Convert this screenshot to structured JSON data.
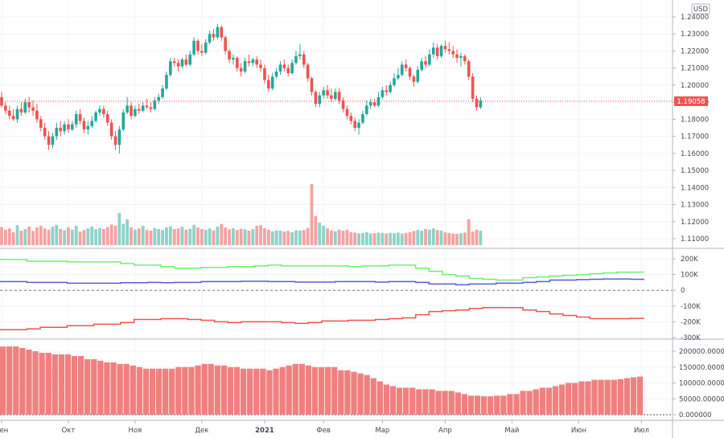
{
  "chart_data": [
    {
      "type": "candlestick",
      "currency_label": "USD",
      "last_price_label": "1.19058",
      "last_price": 1.19058,
      "ylim": [
        1.103,
        1.245
      ],
      "y_ticks": [
        "1.24000",
        "1.23000",
        "1.22000",
        "1.21000",
        "1.20000",
        "1.19000",
        "1.18000",
        "1.17000",
        "1.16000",
        "1.15000",
        "1.14000",
        "1.13000",
        "1.12000",
        "1.11000"
      ],
      "y_tick_values": [
        1.24,
        1.23,
        1.22,
        1.21,
        1.2,
        1.19,
        1.18,
        1.17,
        1.16,
        1.15,
        1.14,
        1.13,
        1.12,
        1.11
      ],
      "x_ticks": [
        "Сен",
        "Окт",
        "Ноя",
        "Дек",
        "2021",
        "Фев",
        "Мар",
        "Апр",
        "Май",
        "Июн",
        "Июл"
      ],
      "x_tick_positions": [
        0,
        17,
        34,
        51,
        67,
        82,
        97,
        113,
        130,
        147,
        163
      ],
      "colors": {
        "up": "#26a69a",
        "down": "#ef5350",
        "volume_up": "#8fd1c9",
        "volume_down": "#f4a3a1"
      },
      "candles": [
        [
          1.193,
          1.196,
          1.187,
          1.188
        ],
        [
          1.188,
          1.19,
          1.183,
          1.185
        ],
        [
          1.185,
          1.188,
          1.18,
          1.182
        ],
        [
          1.182,
          1.186,
          1.179,
          1.18
        ],
        [
          1.18,
          1.188,
          1.178,
          1.186
        ],
        [
          1.186,
          1.19,
          1.182,
          1.184
        ],
        [
          1.184,
          1.192,
          1.183,
          1.19
        ],
        [
          1.19,
          1.193,
          1.184,
          1.187
        ],
        [
          1.187,
          1.191,
          1.182,
          1.185
        ],
        [
          1.185,
          1.189,
          1.178,
          1.18
        ],
        [
          1.18,
          1.182,
          1.173,
          1.175
        ],
        [
          1.175,
          1.178,
          1.168,
          1.17
        ],
        [
          1.17,
          1.173,
          1.162,
          1.165
        ],
        [
          1.165,
          1.172,
          1.163,
          1.17
        ],
        [
          1.17,
          1.178,
          1.168,
          1.175
        ],
        [
          1.175,
          1.179,
          1.17,
          1.173
        ],
        [
          1.173,
          1.179,
          1.171,
          1.177
        ],
        [
          1.177,
          1.18,
          1.172,
          1.174
        ],
        [
          1.174,
          1.179,
          1.173,
          1.177
        ],
        [
          1.177,
          1.185,
          1.175,
          1.183
        ],
        [
          1.183,
          1.186,
          1.177,
          1.179
        ],
        [
          1.179,
          1.181,
          1.172,
          1.174
        ],
        [
          1.174,
          1.179,
          1.171,
          1.176
        ],
        [
          1.176,
          1.182,
          1.175,
          1.179
        ],
        [
          1.179,
          1.185,
          1.178,
          1.184
        ],
        [
          1.184,
          1.188,
          1.182,
          1.186
        ],
        [
          1.186,
          1.188,
          1.181,
          1.183
        ],
        [
          1.183,
          1.185,
          1.176,
          1.178
        ],
        [
          1.178,
          1.18,
          1.168,
          1.17
        ],
        [
          1.17,
          1.173,
          1.162,
          1.165
        ],
        [
          1.165,
          1.176,
          1.16,
          1.174
        ],
        [
          1.174,
          1.186,
          1.173,
          1.184
        ],
        [
          1.184,
          1.193,
          1.183,
          1.188
        ],
        [
          1.188,
          1.19,
          1.18,
          1.182
        ],
        [
          1.182,
          1.188,
          1.181,
          1.186
        ],
        [
          1.186,
          1.189,
          1.183,
          1.185
        ],
        [
          1.185,
          1.19,
          1.184,
          1.188
        ],
        [
          1.188,
          1.192,
          1.186,
          1.187
        ],
        [
          1.187,
          1.19,
          1.184,
          1.186
        ],
        [
          1.186,
          1.193,
          1.185,
          1.191
        ],
        [
          1.191,
          1.195,
          1.189,
          1.193
        ],
        [
          1.193,
          1.2,
          1.192,
          1.198
        ],
        [
          1.198,
          1.208,
          1.197,
          1.206
        ],
        [
          1.206,
          1.216,
          1.205,
          1.214
        ],
        [
          1.214,
          1.216,
          1.211,
          1.213
        ],
        [
          1.213,
          1.215,
          1.208,
          1.211
        ],
        [
          1.211,
          1.216,
          1.21,
          1.215
        ],
        [
          1.215,
          1.218,
          1.211,
          1.212
        ],
        [
          1.212,
          1.22,
          1.211,
          1.218
        ],
        [
          1.218,
          1.228,
          1.217,
          1.226
        ],
        [
          1.226,
          1.227,
          1.218,
          1.22
        ],
        [
          1.22,
          1.224,
          1.217,
          1.219
        ],
        [
          1.219,
          1.227,
          1.218,
          1.225
        ],
        [
          1.225,
          1.232,
          1.224,
          1.23
        ],
        [
          1.23,
          1.233,
          1.226,
          1.228
        ],
        [
          1.228,
          1.236,
          1.227,
          1.234
        ],
        [
          1.234,
          1.235,
          1.226,
          1.228
        ],
        [
          1.228,
          1.229,
          1.218,
          1.22
        ],
        [
          1.22,
          1.221,
          1.213,
          1.215
        ],
        [
          1.215,
          1.218,
          1.212,
          1.216
        ],
        [
          1.216,
          1.217,
          1.208,
          1.21
        ],
        [
          1.21,
          1.213,
          1.205,
          1.208
        ],
        [
          1.208,
          1.216,
          1.207,
          1.214
        ],
        [
          1.214,
          1.218,
          1.211,
          1.213
        ],
        [
          1.213,
          1.216,
          1.211,
          1.215
        ],
        [
          1.215,
          1.217,
          1.21,
          1.212
        ],
        [
          1.212,
          1.215,
          1.208,
          1.21
        ],
        [
          1.21,
          1.212,
          1.201,
          1.203
        ],
        [
          1.203,
          1.206,
          1.196,
          1.198
        ],
        [
          1.198,
          1.207,
          1.197,
          1.205
        ],
        [
          1.205,
          1.21,
          1.204,
          1.208
        ],
        [
          1.208,
          1.214,
          1.206,
          1.212
        ],
        [
          1.212,
          1.215,
          1.208,
          1.21
        ],
        [
          1.21,
          1.212,
          1.205,
          1.207
        ],
        [
          1.207,
          1.215,
          1.206,
          1.213
        ],
        [
          1.213,
          1.22,
          1.212,
          1.217
        ],
        [
          1.217,
          1.224,
          1.215,
          1.218
        ],
        [
          1.218,
          1.22,
          1.21,
          1.212
        ],
        [
          1.212,
          1.213,
          1.202,
          1.204
        ],
        [
          1.204,
          1.205,
          1.194,
          1.196
        ],
        [
          1.196,
          1.197,
          1.187,
          1.189
        ],
        [
          1.189,
          1.196,
          1.187,
          1.194
        ],
        [
          1.194,
          1.199,
          1.192,
          1.197
        ],
        [
          1.197,
          1.2,
          1.192,
          1.194
        ],
        [
          1.194,
          1.198,
          1.19,
          1.192
        ],
        [
          1.192,
          1.198,
          1.191,
          1.196
        ],
        [
          1.196,
          1.198,
          1.189,
          1.191
        ],
        [
          1.191,
          1.193,
          1.184,
          1.186
        ],
        [
          1.186,
          1.188,
          1.18,
          1.182
        ],
        [
          1.182,
          1.184,
          1.177,
          1.179
        ],
        [
          1.179,
          1.181,
          1.173,
          1.175
        ],
        [
          1.175,
          1.18,
          1.171,
          1.178
        ],
        [
          1.178,
          1.185,
          1.177,
          1.183
        ],
        [
          1.183,
          1.191,
          1.182,
          1.188
        ],
        [
          1.188,
          1.192,
          1.186,
          1.19
        ],
        [
          1.19,
          1.192,
          1.187,
          1.188
        ],
        [
          1.188,
          1.196,
          1.187,
          1.193
        ],
        [
          1.193,
          1.199,
          1.192,
          1.197
        ],
        [
          1.197,
          1.2,
          1.194,
          1.196
        ],
        [
          1.196,
          1.202,
          1.195,
          1.2
        ],
        [
          1.2,
          1.207,
          1.199,
          1.204
        ],
        [
          1.204,
          1.21,
          1.203,
          1.206
        ],
        [
          1.206,
          1.214,
          1.205,
          1.212
        ],
        [
          1.212,
          1.215,
          1.208,
          1.21
        ],
        [
          1.21,
          1.211,
          1.203,
          1.205
        ],
        [
          1.205,
          1.206,
          1.199,
          1.202
        ],
        [
          1.202,
          1.211,
          1.201,
          1.209
        ],
        [
          1.209,
          1.216,
          1.208,
          1.214
        ],
        [
          1.214,
          1.217,
          1.21,
          1.212
        ],
        [
          1.212,
          1.221,
          1.211,
          1.218
        ],
        [
          1.218,
          1.225,
          1.216,
          1.222
        ],
        [
          1.222,
          1.224,
          1.215,
          1.217
        ],
        [
          1.217,
          1.224,
          1.216,
          1.223
        ],
        [
          1.223,
          1.226,
          1.219,
          1.221
        ],
        [
          1.221,
          1.225,
          1.218,
          1.22
        ],
        [
          1.22,
          1.223,
          1.216,
          1.218
        ],
        [
          1.218,
          1.221,
          1.213,
          1.216
        ],
        [
          1.216,
          1.219,
          1.211,
          1.217
        ],
        [
          1.217,
          1.218,
          1.212,
          1.214
        ],
        [
          1.214,
          1.215,
          1.203,
          1.205
        ],
        [
          1.205,
          1.207,
          1.19,
          1.192
        ],
        [
          1.192,
          1.194,
          1.185,
          1.187
        ],
        [
          1.187,
          1.193,
          1.186,
          1.191
        ]
      ],
      "volume": [
        0.56,
        0.48,
        0.52,
        0.4,
        0.62,
        0.45,
        0.5,
        0.58,
        0.44,
        0.55,
        0.6,
        0.52,
        0.48,
        0.57,
        0.63,
        0.5,
        0.46,
        0.55,
        0.48,
        0.6,
        0.42,
        0.47,
        0.52,
        0.58,
        0.49,
        0.53,
        0.5,
        0.56,
        0.64,
        0.6,
        1.0,
        0.66,
        0.8,
        0.55,
        0.48,
        0.52,
        0.6,
        0.47,
        0.45,
        0.53,
        0.5,
        0.47,
        0.55,
        0.58,
        0.5,
        0.52,
        0.57,
        0.48,
        0.51,
        0.63,
        0.55,
        0.5,
        0.47,
        0.52,
        0.46,
        0.58,
        0.66,
        0.55,
        0.49,
        0.52,
        0.47,
        0.51,
        0.49,
        0.45,
        0.5,
        0.6,
        0.62,
        0.53,
        0.48,
        0.43,
        0.46,
        0.45,
        0.42,
        0.44,
        0.4,
        0.46,
        0.45,
        0.47,
        0.53,
        1.9,
        0.9,
        0.7,
        0.6,
        0.52,
        0.46,
        0.43,
        0.48,
        0.45,
        0.47,
        0.4,
        0.39,
        0.36,
        0.38,
        0.4,
        0.36,
        0.37,
        0.39,
        0.38,
        0.36,
        0.38,
        0.37,
        0.39,
        0.36,
        0.38,
        0.4,
        0.44,
        0.47,
        0.45,
        0.5,
        0.48,
        0.52,
        0.47,
        0.45,
        0.4,
        0.38,
        0.36,
        0.35,
        0.37,
        0.39,
        0.8,
        0.42,
        0.48,
        0.45
      ]
    },
    {
      "type": "line",
      "y_ticks": [
        "200K",
        "100K",
        "0",
        "-100K",
        "-200K",
        "-300K"
      ],
      "y_tick_values": [
        200000,
        100000,
        0,
        -100000,
        -200000,
        -300000
      ],
      "ylim": [
        -330000,
        250000
      ],
      "zero_line": true,
      "series": [
        {
          "color": "#6ef06e",
          "values": [
            195000,
            195000,
            185000,
            185000,
            185000,
            180000,
            180000,
            180000,
            180000,
            170000,
            160000,
            160000,
            150000,
            140000,
            140000,
            145000,
            145000,
            150000,
            150000,
            155000,
            160000,
            155000,
            155000,
            155000,
            155000,
            155000,
            150000,
            155000,
            155000,
            160000,
            160000,
            140000,
            120000,
            100000,
            90000,
            75000,
            70000,
            65000,
            65000,
            80000,
            85000,
            90000,
            95000,
            100000,
            105000,
            110000,
            115000,
            115000,
            120000
          ]
        },
        {
          "color": "#5b5bd6",
          "values": [
            55000,
            55000,
            50000,
            50000,
            50000,
            45000,
            45000,
            45000,
            45000,
            48000,
            48000,
            50000,
            48000,
            50000,
            50000,
            55000,
            55000,
            55000,
            57000,
            57000,
            55000,
            55000,
            52000,
            52000,
            52000,
            55000,
            55000,
            55000,
            52000,
            55000,
            55000,
            50000,
            40000,
            40000,
            35000,
            40000,
            40000,
            45000,
            45000,
            50000,
            55000,
            65000,
            65000,
            68000,
            70000,
            72000,
            72000,
            70000,
            65000
          ]
        },
        {
          "color": "#ef5350",
          "values": [
            -250000,
            -250000,
            -245000,
            -235000,
            -235000,
            -225000,
            -225000,
            -215000,
            -215000,
            -205000,
            -185000,
            -185000,
            -180000,
            -180000,
            -185000,
            -190000,
            -200000,
            -205000,
            -200000,
            -200000,
            -200000,
            -205000,
            -210000,
            -205000,
            -195000,
            -195000,
            -190000,
            -190000,
            -185000,
            -180000,
            -175000,
            -155000,
            -135000,
            -130000,
            -125000,
            -115000,
            -110000,
            -110000,
            -110000,
            -125000,
            -135000,
            -150000,
            -160000,
            -170000,
            -180000,
            -180000,
            -180000,
            -178000,
            -175000
          ]
        }
      ]
    },
    {
      "type": "bar",
      "y_ticks": [
        "200000.000000",
        "150000.000000",
        "100000.000000",
        "50000.000000",
        "0.000000"
      ],
      "y_tick_values": [
        200000,
        150000,
        100000,
        50000,
        0
      ],
      "ylim": [
        -5000,
        225000
      ],
      "color": "#f08080",
      "values": [
        215000,
        215000,
        215000,
        210000,
        205000,
        200000,
        195000,
        195000,
        190000,
        190000,
        190000,
        185000,
        185000,
        175000,
        175000,
        170000,
        165000,
        165000,
        160000,
        160000,
        155000,
        150000,
        145000,
        145000,
        145000,
        145000,
        145000,
        150000,
        150000,
        150000,
        155000,
        160000,
        160000,
        155000,
        155000,
        150000,
        150000,
        145000,
        145000,
        145000,
        145000,
        140000,
        145000,
        150000,
        155000,
        160000,
        160000,
        155000,
        150000,
        150000,
        150000,
        150000,
        140000,
        140000,
        135000,
        130000,
        125000,
        115000,
        105000,
        95000,
        90000,
        85000,
        85000,
        85000,
        80000,
        80000,
        80000,
        75000,
        75000,
        75000,
        70000,
        65000,
        60000,
        60000,
        58000,
        58000,
        60000,
        60000,
        65000,
        65000,
        75000,
        75000,
        80000,
        85000,
        85000,
        90000,
        95000,
        100000,
        100000,
        105000,
        105000,
        110000,
        110000,
        110000,
        110000,
        112000,
        115000,
        118000,
        120000
      ]
    }
  ]
}
